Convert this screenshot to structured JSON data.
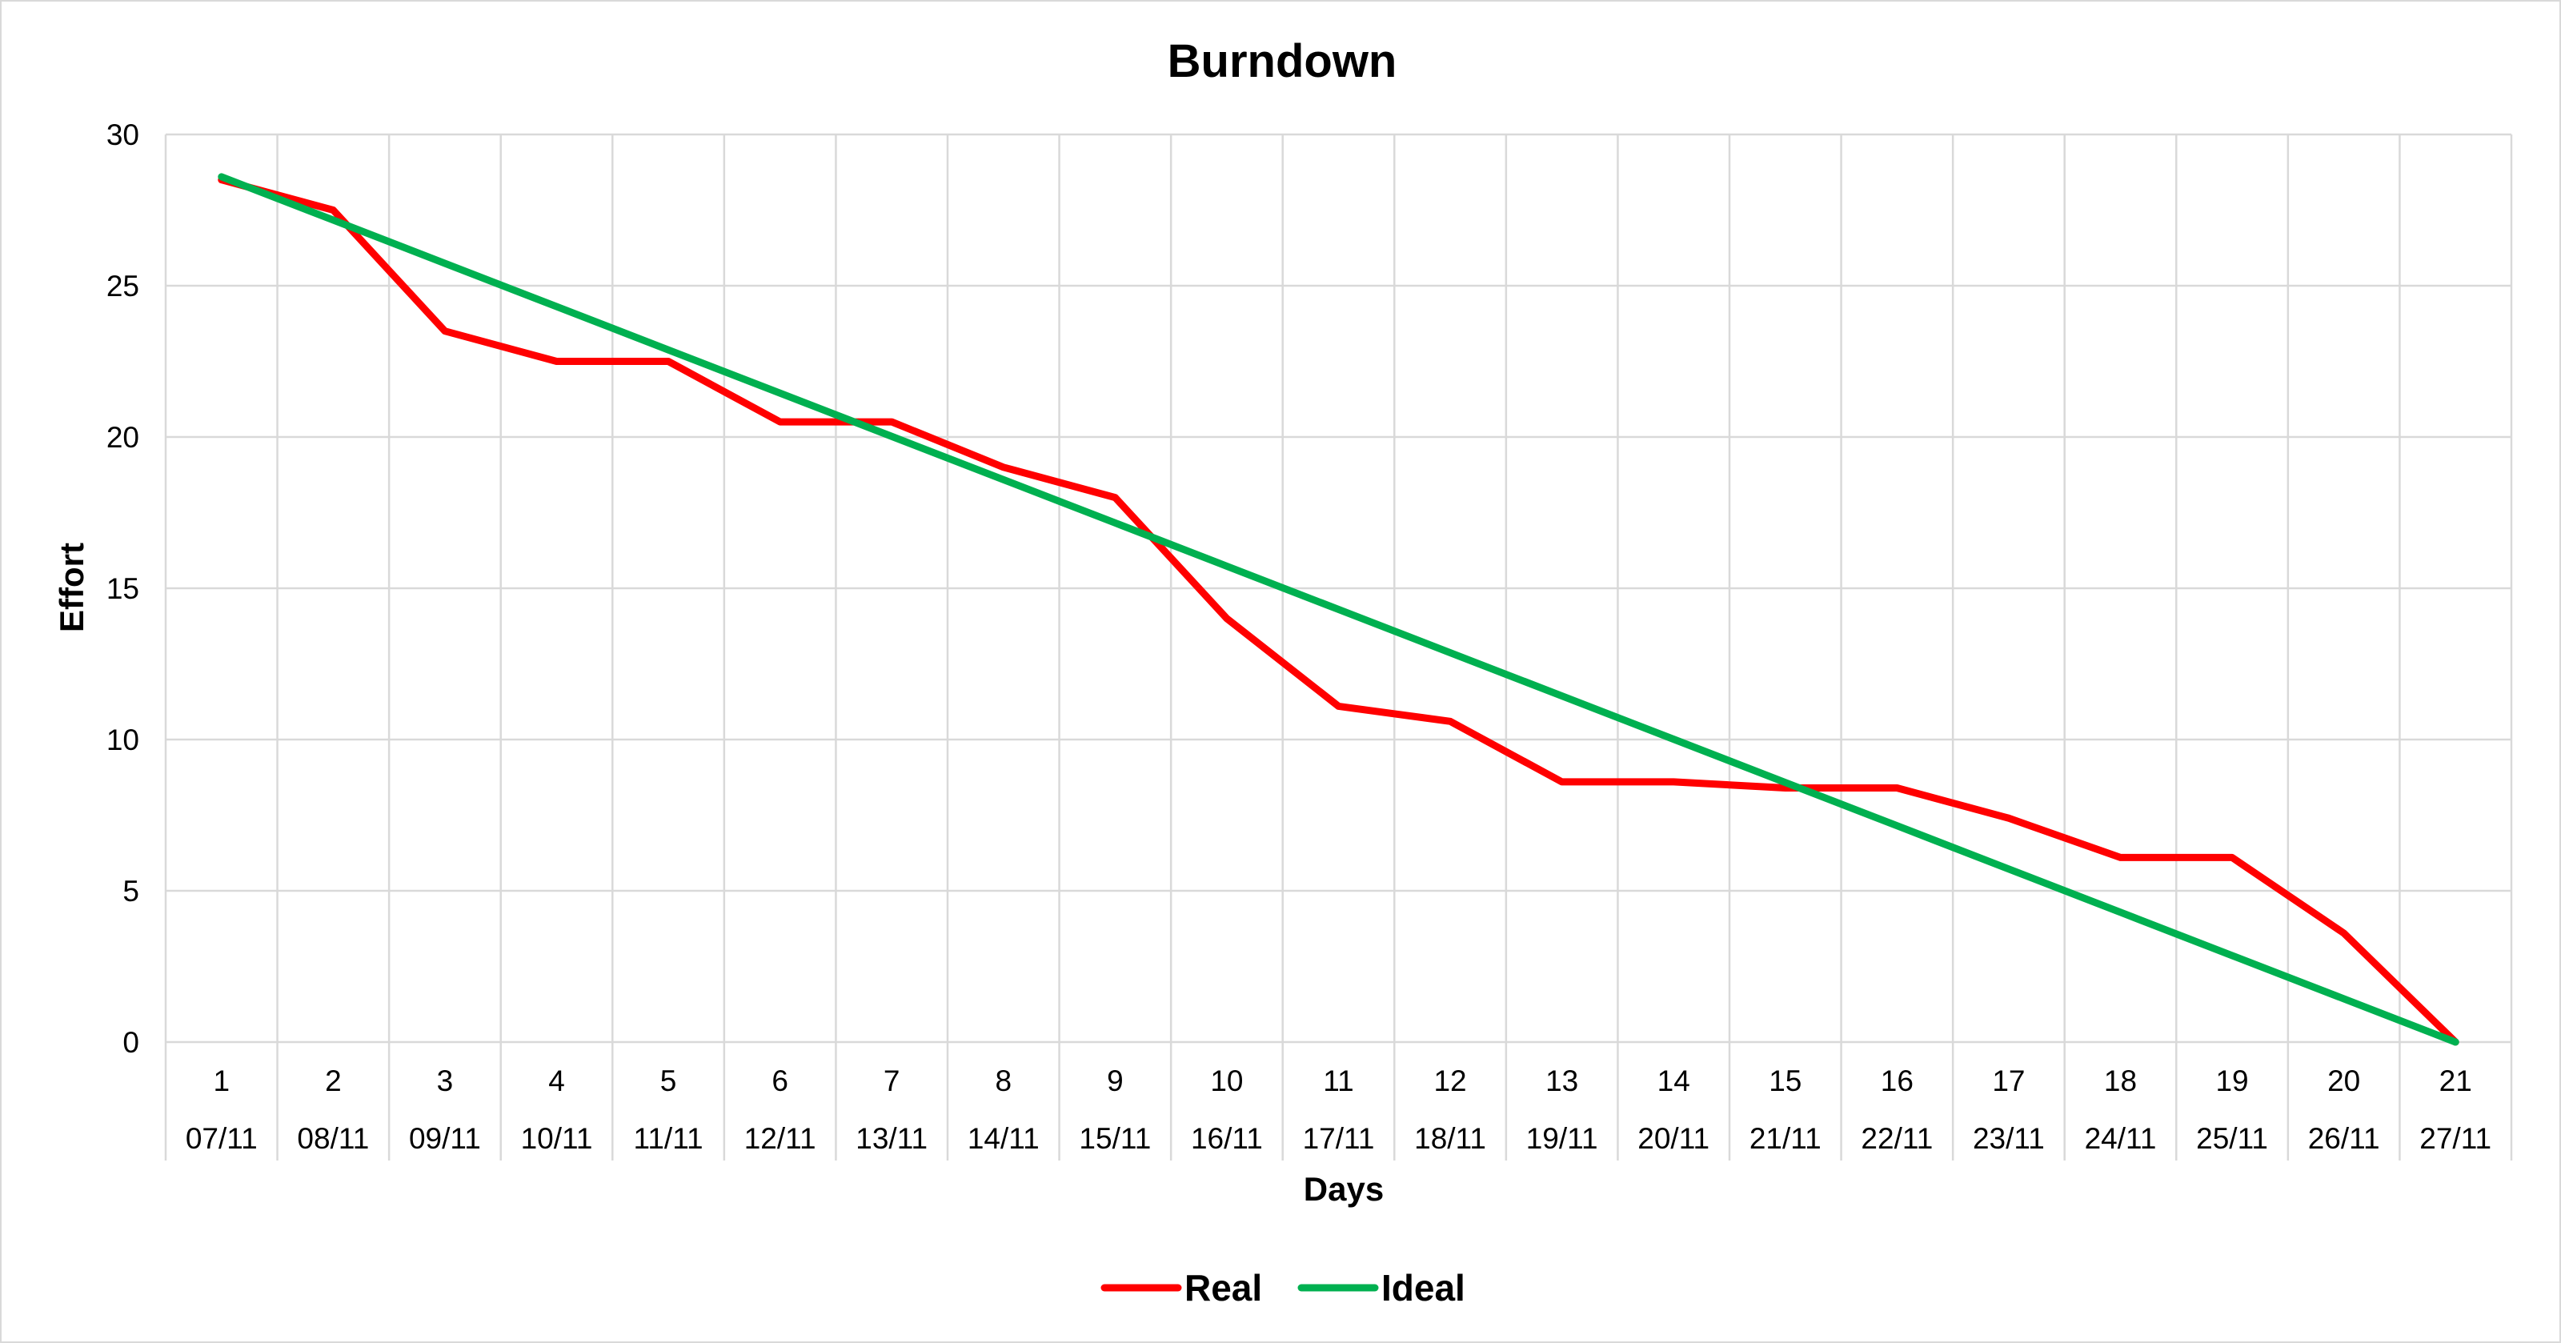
{
  "chart_data": {
    "type": "line",
    "title": "Burndown",
    "xlabel": "Days",
    "ylabel": "Effort",
    "ylim": [
      0,
      30
    ],
    "yticks": [
      0,
      5,
      10,
      15,
      20,
      25,
      30
    ],
    "grid": true,
    "legend_position": "bottom",
    "categories": [
      "1",
      "2",
      "3",
      "4",
      "5",
      "6",
      "7",
      "8",
      "9",
      "10",
      "11",
      "12",
      "13",
      "14",
      "15",
      "16",
      "17",
      "18",
      "19",
      "20",
      "21"
    ],
    "dates": [
      "07/11",
      "08/11",
      "09/11",
      "10/11",
      "11/11",
      "12/11",
      "13/11",
      "14/11",
      "15/11",
      "16/11",
      "17/11",
      "18/11",
      "19/11",
      "20/11",
      "21/11",
      "22/11",
      "23/11",
      "24/11",
      "25/11",
      "26/11",
      "27/11"
    ],
    "series": [
      {
        "name": "Real",
        "color": "#ff0000",
        "values": [
          28.5,
          27.5,
          23.5,
          22.5,
          22.5,
          20.5,
          20.5,
          19,
          18,
          14,
          11.1,
          10.6,
          8.6,
          8.6,
          8.4,
          8.4,
          7.4,
          6.1,
          6.1,
          3.6,
          0
        ]
      },
      {
        "name": "Ideal",
        "color": "#00b050",
        "values": [
          28.6,
          27.17,
          25.74,
          24.31,
          22.88,
          21.45,
          20.02,
          18.59,
          17.16,
          15.73,
          14.3,
          12.87,
          11.44,
          10.01,
          8.58,
          7.15,
          5.72,
          4.29,
          2.86,
          1.43,
          0
        ]
      }
    ]
  }
}
